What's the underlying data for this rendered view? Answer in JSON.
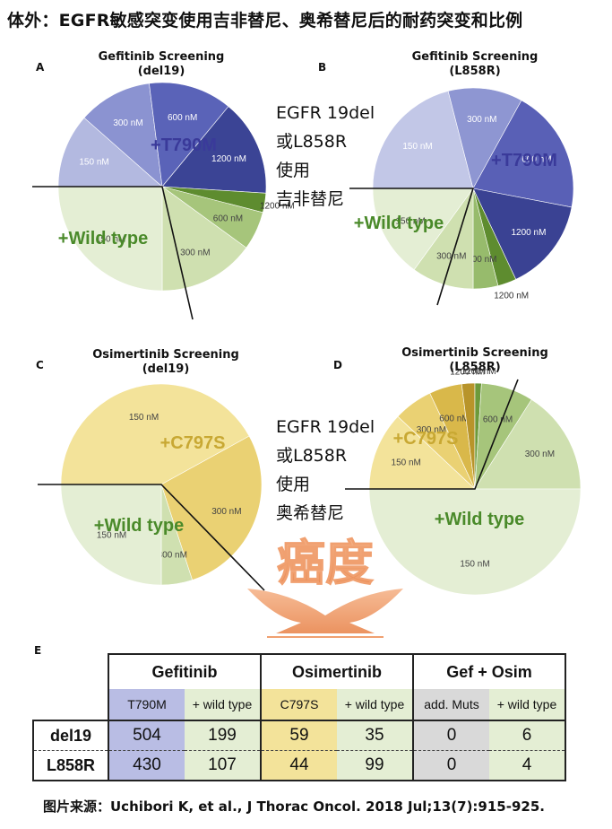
{
  "page_title": "体外：EGFR敏感突变使用吉非替尼、奥希替尼后的耐药突变和比例",
  "side_text_a": [
    "EGFR 19del",
    "或L858R",
    "使用",
    "吉非替尼"
  ],
  "side_text_c": [
    "EGFR 19del",
    "或L858R",
    "使用",
    "奥希替尼"
  ],
  "watermark": "癌度",
  "source": "图片来源：Uchibori K, et al., J Thorac Oncol. 2018 Jul;13(7):915-925.",
  "chart_data": [
    {
      "type": "pie",
      "panel": "A",
      "title": "Gefitinib Screening",
      "subtitle": "(del19)",
      "groups": [
        {
          "name": "+T790M",
          "color": "#3a3a9a"
        },
        {
          "name": "+Wild type",
          "color": "#4a8a2a"
        }
      ],
      "slices": [
        {
          "label": "150 nM",
          "value": 11.5,
          "group": "+T790M",
          "color": "#b3b9e0"
        },
        {
          "label": "300 nM",
          "value": 11.5,
          "group": "+T790M",
          "color": "#8b93d1"
        },
        {
          "label": "600 nM",
          "value": 13,
          "group": "+T790M",
          "color": "#5a63b8"
        },
        {
          "label": "1200 nM",
          "value": 15,
          "group": "+T790M",
          "color": "#3b4495"
        },
        {
          "label": "1200 nM",
          "value": 3,
          "group": "+Wild type",
          "color": "#5e8c2f"
        },
        {
          "label": "600 nM",
          "value": 6,
          "group": "+Wild type",
          "color": "#a6c57b"
        },
        {
          "label": "300 nM",
          "value": 15,
          "group": "+Wild type",
          "color": "#cfe0b0"
        },
        {
          "label": "150 nM",
          "value": 25,
          "group": "+Wild type",
          "color": "#e4eed4"
        }
      ]
    },
    {
      "type": "pie",
      "panel": "B",
      "title": "Gefitinib Screening",
      "subtitle": "(L858R)",
      "groups": [
        {
          "name": "+T790M",
          "color": "#3a3a9a"
        },
        {
          "name": "+Wild type",
          "color": "#4a8a2a"
        }
      ],
      "slices": [
        {
          "label": "150 nM",
          "value": 21,
          "group": "+T790M",
          "color": "#c2c7e7"
        },
        {
          "label": "300 nM",
          "value": 12,
          "group": "+T790M",
          "color": "#8e96d2"
        },
        {
          "label": "600 nM",
          "value": 20,
          "group": "+T790M",
          "color": "#5960b6"
        },
        {
          "label": "1200 nM",
          "value": 15,
          "group": "+T790M",
          "color": "#3a4293"
        },
        {
          "label": "1200 nM",
          "value": 3,
          "group": "+Wild type",
          "color": "#5e8c2f"
        },
        {
          "label": "600 nM",
          "value": 4,
          "group": "+Wild type",
          "color": "#97bb6c"
        },
        {
          "label": "300 nM",
          "value": 10,
          "group": "+Wild type",
          "color": "#cfe0b0"
        },
        {
          "label": "150 nM",
          "value": 15,
          "group": "+Wild type",
          "color": "#e4eed4"
        }
      ]
    },
    {
      "type": "pie",
      "panel": "C",
      "title": "Osimertinib Screening",
      "subtitle": "(del19)",
      "groups": [
        {
          "name": "+C797S",
          "color": "#c8a833"
        },
        {
          "name": "+Wild type",
          "color": "#4a8a2a"
        }
      ],
      "slices": [
        {
          "label": "150 nM",
          "value": 42,
          "group": "+C797S",
          "color": "#f3e39a"
        },
        {
          "label": "300 nM",
          "value": 28,
          "group": "+C797S",
          "color": "#ead173"
        },
        {
          "label": "300 nM",
          "value": 5,
          "group": "+Wild type",
          "color": "#cfe0b0"
        },
        {
          "label": "150 nM",
          "value": 25,
          "group": "+Wild type",
          "color": "#e4eed4"
        }
      ]
    },
    {
      "type": "pie",
      "panel": "D",
      "title": "Osimertinib Screening",
      "subtitle": "(L858R)",
      "groups": [
        {
          "name": "+C797S",
          "color": "#c8a833"
        },
        {
          "name": "+Wild type",
          "color": "#4a8a2a"
        }
      ],
      "slices": [
        {
          "label": "150 nM",
          "value": 12,
          "group": "+C797S",
          "color": "#f3e39a"
        },
        {
          "label": "300 nM",
          "value": 6,
          "group": "+C797S",
          "color": "#ead173"
        },
        {
          "label": "600 nM",
          "value": 5,
          "group": "+C797S",
          "color": "#d9b84a"
        },
        {
          "label": "1200 nM",
          "value": 2,
          "group": "+C797S",
          "color": "#b8942a"
        },
        {
          "label": "1200 nM",
          "value": 1,
          "group": "+Wild type",
          "color": "#6d9a3b"
        },
        {
          "label": "600 nM",
          "value": 8,
          "group": "+Wild type",
          "color": "#a6c57b"
        },
        {
          "label": "300 nM",
          "value": 16,
          "group": "+Wild type",
          "color": "#cfe0b0"
        },
        {
          "label": "150 nM",
          "value": 50,
          "group": "+Wild type",
          "color": "#e4eed4"
        }
      ]
    },
    {
      "type": "table",
      "panel": "E",
      "groups": [
        "Gefitinib",
        "Osimertinib",
        "Gef + Osim"
      ],
      "columns": [
        "T790M",
        "+ wild type",
        "C797S",
        "+ wild type",
        "add. Muts",
        "+ wild type"
      ],
      "column_colors": [
        "#b9bde4",
        "#e4eed4",
        "#f3e39a",
        "#e4eed4",
        "#d9d9d9",
        "#e4eed4"
      ],
      "rows": [
        {
          "label": "del19",
          "values": [
            "504",
            "199",
            "59",
            "35",
            "0",
            "6"
          ]
        },
        {
          "label": "L858R",
          "values": [
            "430",
            "107",
            "44",
            "99",
            "0",
            "4"
          ]
        }
      ]
    }
  ]
}
